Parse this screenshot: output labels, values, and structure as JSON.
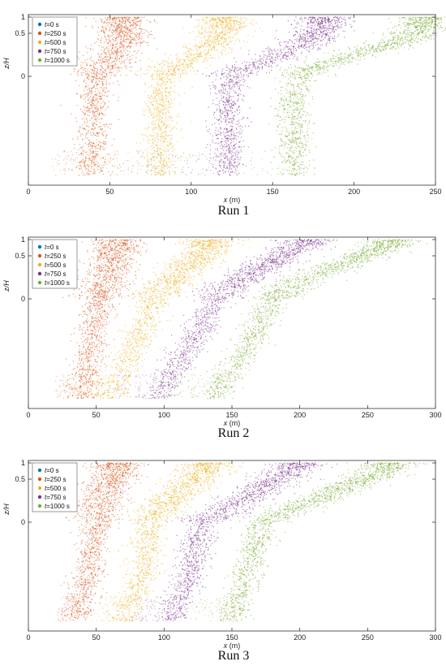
{
  "chart_data": [
    {
      "type": "scatter",
      "caption": "Run 1",
      "xlabel_var": "x",
      "xlabel_unit": " (m)",
      "ylabel": "z/H",
      "xlim": [
        0,
        250
      ],
      "xticks": [
        0,
        50,
        100,
        150,
        200,
        250
      ],
      "yticks": [
        "1",
        "0.5",
        "0"
      ],
      "legend": "top-left",
      "grid": false,
      "series": [
        {
          "name": "t=0 s",
          "color": "#0072BD",
          "shape": []
        },
        {
          "name": "t=250 s",
          "color": "#D95319",
          "shape": [
            [
              40,
              -1.0
            ],
            [
              40,
              -0.2
            ],
            [
              44,
              0.1
            ],
            [
              51,
              0.3
            ],
            [
              57,
              0.55
            ],
            [
              59,
              0.8
            ],
            [
              60,
              1.0
            ]
          ],
          "lead": 25
        },
        {
          "name": "t=500 s",
          "color": "#EDB120",
          "shape": [
            [
              81,
              -1.0
            ],
            [
              81,
              -0.2
            ],
            [
              86,
              0.1
            ],
            [
              100,
              0.3
            ],
            [
              113,
              0.55
            ],
            [
              119,
              0.8
            ],
            [
              121,
              1.0
            ]
          ],
          "lead": 50
        },
        {
          "name": "t=750 s",
          "color": "#7E2F8E",
          "shape": [
            [
              122,
              -1.0
            ],
            [
              122,
              -0.2
            ],
            [
              128,
              0.1
            ],
            [
              150,
              0.3
            ],
            [
              170,
              0.55
            ],
            [
              181,
              0.8
            ],
            [
              183,
              1.0
            ]
          ],
          "lead": 70
        },
        {
          "name": "t=1000 s",
          "color": "#77AC30",
          "shape": [
            [
              163,
              -1.0
            ],
            [
              163,
              -0.2
            ],
            [
              170,
              0.1
            ],
            [
              195,
              0.3
            ],
            [
              225,
              0.55
            ],
            [
              241,
              0.8
            ],
            [
              245,
              1.0
            ]
          ],
          "lead": 90
        }
      ]
    },
    {
      "type": "scatter",
      "caption": "Run 2",
      "xlabel_var": "x",
      "xlabel_unit": " (m)",
      "ylabel": "z/H",
      "xlim": [
        0,
        300
      ],
      "xticks": [
        0,
        50,
        100,
        150,
        200,
        250,
        300
      ],
      "yticks": [
        "1",
        "0.5",
        "0"
      ],
      "legend": "top-left",
      "grid": false,
      "series": [
        {
          "name": "t=0 s",
          "color": "#0072BD",
          "shape": []
        },
        {
          "name": "t=250 s",
          "color": "#D95319",
          "shape": [
            [
              40,
              -1.0
            ],
            [
              46,
              -0.5
            ],
            [
              52,
              0.0
            ],
            [
              58,
              0.4
            ],
            [
              64,
              0.75
            ],
            [
              67,
              1.0
            ]
          ],
          "lead": 20
        },
        {
          "name": "t=500 s",
          "color": "#EDB120",
          "shape": [
            [
              60,
              -1.0
            ],
            [
              78,
              -0.5
            ],
            [
              92,
              0.0
            ],
            [
              110,
              0.4
            ],
            [
              128,
              0.75
            ],
            [
              136,
              1.0
            ]
          ],
          "lead": 30
        },
        {
          "name": "t=750 s",
          "color": "#7E2F8E",
          "shape": [
            [
              95,
              -1.0
            ],
            [
              118,
              -0.5
            ],
            [
              138,
              0.0
            ],
            [
              160,
              0.4
            ],
            [
              190,
              0.75
            ],
            [
              208,
              1.0
            ]
          ],
          "lead": 40
        },
        {
          "name": "t=1000 s",
          "color": "#77AC30",
          "shape": [
            [
              135,
              -1.0
            ],
            [
              160,
              -0.5
            ],
            [
              180,
              0.0
            ],
            [
              210,
              0.4
            ],
            [
              250,
              0.75
            ],
            [
              273,
              1.0
            ]
          ],
          "lead": 45
        }
      ]
    },
    {
      "type": "scatter",
      "caption": "Run 3",
      "xlabel_var": "x",
      "xlabel_unit": " (m)",
      "ylabel": "z/H",
      "xlim": [
        0,
        300
      ],
      "xticks": [
        0,
        50,
        100,
        150,
        200,
        250,
        300
      ],
      "yticks": [
        "1",
        "0.5",
        "0"
      ],
      "legend": "top-left",
      "grid": false,
      "series": [
        {
          "name": "t=0 s",
          "color": "#0072BD",
          "shape": []
        },
        {
          "name": "t=250 s",
          "color": "#D95319",
          "shape": [
            [
              35,
              -1.0
            ],
            [
              45,
              -0.5
            ],
            [
              50,
              0.0
            ],
            [
              56,
              0.5
            ],
            [
              62,
              0.8
            ],
            [
              66,
              1.0
            ]
          ],
          "lead": 15
        },
        {
          "name": "t=500 s",
          "color": "#EDB120",
          "shape": [
            [
              70,
              -1.0
            ],
            [
              85,
              -0.5
            ],
            [
              90,
              0.0
            ],
            [
              105,
              0.4
            ],
            [
              125,
              0.75
            ],
            [
              135,
              1.0
            ]
          ],
          "lead": 25
        },
        {
          "name": "t=750 s",
          "color": "#7E2F8E",
          "shape": [
            [
              105,
              -1.0
            ],
            [
              120,
              -0.5
            ],
            [
              128,
              0.0
            ],
            [
              160,
              0.4
            ],
            [
              185,
              0.75
            ],
            [
              203,
              1.0
            ]
          ],
          "lead": 30
        },
        {
          "name": "t=1000 s",
          "color": "#77AC30",
          "shape": [
            [
              150,
              -1.0
            ],
            [
              162,
              -0.5
            ],
            [
              172,
              0.0
            ],
            [
              210,
              0.35
            ],
            [
              250,
              0.75
            ],
            [
              270,
              1.0
            ]
          ],
          "lead": 30
        }
      ]
    }
  ]
}
